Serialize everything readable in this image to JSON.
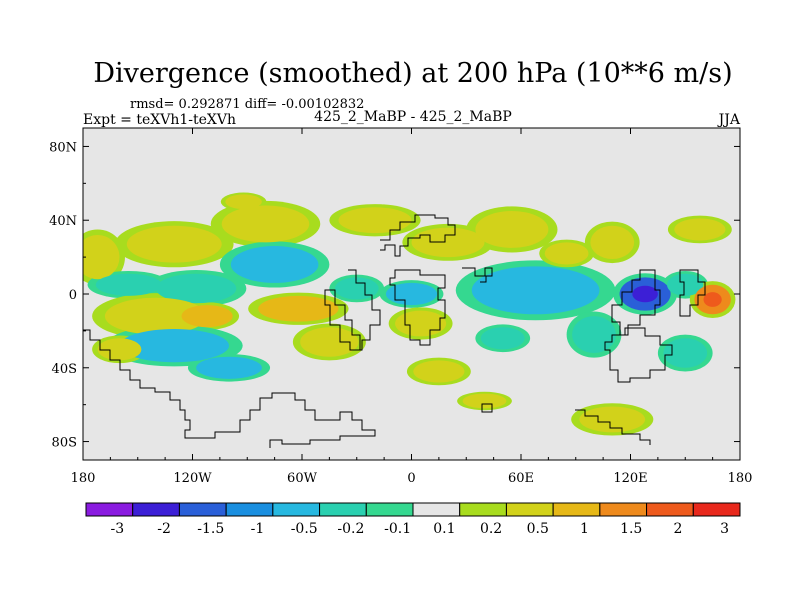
{
  "chart_data": {
    "type": "heatmap",
    "title": "Divergence (smoothed) at 200 hPa (10**6 m/s)",
    "stats": "rmsd= 0.292871 diff= -0.00102832",
    "experiment": "Expt = teXVh1-teXVh",
    "case": "425_2_MaBP - 425_2_MaBP",
    "season": "JJA",
    "lon_range": [
      -180,
      180
    ],
    "lat_range": [
      -90,
      90
    ],
    "x_ticks": [
      {
        "value": -180,
        "label": "180"
      },
      {
        "value": -120,
        "label": "120W"
      },
      {
        "value": -60,
        "label": "60W"
      },
      {
        "value": 0,
        "label": "0"
      },
      {
        "value": 60,
        "label": "60E"
      },
      {
        "value": 120,
        "label": "120E"
      },
      {
        "value": 180,
        "label": "180"
      }
    ],
    "y_ticks": [
      {
        "value": 80,
        "label": "80N"
      },
      {
        "value": 40,
        "label": "40N"
      },
      {
        "value": 0,
        "label": "0"
      },
      {
        "value": -40,
        "label": "40S"
      },
      {
        "value": -80,
        "label": "80S"
      }
    ],
    "colorbar": {
      "labels": [
        "-3",
        "-2",
        "-1.5",
        "-1",
        "-0.5",
        "-0.2",
        "-0.1",
        "0.1",
        "0.2",
        "0.5",
        "1",
        "1.5",
        "2",
        "3"
      ],
      "colors": [
        "#8a1be0",
        "#3c1fd6",
        "#2a5fd8",
        "#1a8fe0",
        "#27b8e0",
        "#2ad0b0",
        "#35d890",
        "#e6e6e6",
        "#a8dc1e",
        "#d2d21a",
        "#e6b817",
        "#ee8a1c",
        "#ee5a1c",
        "#e8281c"
      ]
    },
    "blobs": [
      {
        "lon": -172,
        "lat": 20,
        "rlon": 12,
        "rlat": 12,
        "value": 0.3
      },
      {
        "lon": -155,
        "lat": 5,
        "rlon": 18,
        "rlat": 6,
        "value": -0.4
      },
      {
        "lon": -130,
        "lat": 27,
        "rlon": 26,
        "rlat": 10,
        "value": 0.4
      },
      {
        "lon": -118,
        "lat": 3,
        "rlon": 22,
        "rlat": 8,
        "value": -0.4
      },
      {
        "lon": -140,
        "lat": -12,
        "rlon": 28,
        "rlat": 10,
        "value": 0.4
      },
      {
        "lon": -112,
        "lat": -12,
        "rlon": 14,
        "rlat": 6,
        "value": 0.9
      },
      {
        "lon": -130,
        "lat": -28,
        "rlon": 30,
        "rlat": 9,
        "value": -0.6
      },
      {
        "lon": -160,
        "lat": -30,
        "rlon": 12,
        "rlat": 6,
        "value": 0.3
      },
      {
        "lon": -100,
        "lat": -40,
        "rlon": 18,
        "rlat": 6,
        "value": -0.5
      },
      {
        "lon": -80,
        "lat": 38,
        "rlon": 24,
        "rlat": 10,
        "value": 0.4
      },
      {
        "lon": -75,
        "lat": 16,
        "rlon": 24,
        "rlat": 10,
        "value": -0.5
      },
      {
        "lon": -92,
        "lat": 50,
        "rlon": 10,
        "rlat": 4,
        "value": 0.2
      },
      {
        "lon": -62,
        "lat": -8,
        "rlon": 22,
        "rlat": 7,
        "value": 0.8
      },
      {
        "lon": -45,
        "lat": -26,
        "rlon": 16,
        "rlat": 8,
        "value": 0.3
      },
      {
        "lon": -30,
        "lat": 3,
        "rlon": 12,
        "rlat": 6,
        "value": -0.4
      },
      {
        "lon": -20,
        "lat": 40,
        "rlon": 20,
        "rlat": 7,
        "value": 0.3
      },
      {
        "lon": 0,
        "lat": 0,
        "rlon": 14,
        "rlat": 6,
        "value": -0.7
      },
      {
        "lon": 5,
        "lat": -16,
        "rlon": 14,
        "rlat": 7,
        "value": 0.4
      },
      {
        "lon": 20,
        "lat": 28,
        "rlon": 20,
        "rlat": 8,
        "value": 0.3
      },
      {
        "lon": 15,
        "lat": -42,
        "rlon": 14,
        "rlat": 6,
        "value": 0.3
      },
      {
        "lon": 55,
        "lat": 35,
        "rlon": 20,
        "rlat": 10,
        "value": 0.4
      },
      {
        "lon": 68,
        "lat": 2,
        "rlon": 35,
        "rlat": 13,
        "value": -0.7
      },
      {
        "lon": 50,
        "lat": -24,
        "rlon": 12,
        "rlat": 6,
        "value": -0.3
      },
      {
        "lon": 40,
        "lat": -58,
        "rlon": 12,
        "rlat": 4,
        "value": 0.2
      },
      {
        "lon": 85,
        "lat": 22,
        "rlon": 12,
        "rlat": 6,
        "value": 0.2
      },
      {
        "lon": 110,
        "lat": 28,
        "rlon": 12,
        "rlat": 9,
        "value": 0.3
      },
      {
        "lon": 100,
        "lat": -22,
        "rlon": 12,
        "rlat": 10,
        "value": -0.4
      },
      {
        "lon": 128,
        "lat": 0,
        "rlon": 14,
        "rlat": 9,
        "value": -1.8
      },
      {
        "lon": 150,
        "lat": 5,
        "rlon": 10,
        "rlat": 6,
        "value": -0.4
      },
      {
        "lon": 165,
        "lat": -3,
        "rlon": 10,
        "rlat": 8,
        "value": 1.3
      },
      {
        "lon": 158,
        "lat": 35,
        "rlon": 14,
        "rlat": 6,
        "value": 0.2
      },
      {
        "lon": 150,
        "lat": -32,
        "rlon": 12,
        "rlat": 8,
        "value": -0.3
      },
      {
        "lon": 110,
        "lat": -68,
        "rlon": 18,
        "rlat": 7,
        "value": 0.3
      }
    ]
  }
}
